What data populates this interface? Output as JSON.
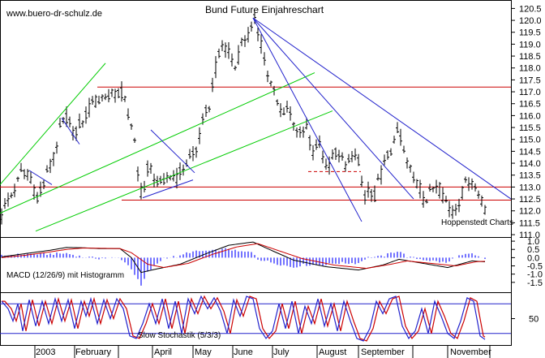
{
  "chart_data": {
    "title": "Bund Future Einjahreschart",
    "watermark": "www.buero-dr-schulz.de",
    "source_label": "Hoppenstedt Charts",
    "price_panel": {
      "type": "candlestick",
      "ylim": [
        110.9,
        120.65
      ],
      "y_ticks": [
        "120.5",
        "120.0",
        "119.5",
        "119.0",
        "118.5",
        "118.0",
        "117.5",
        "117.0",
        "116.5",
        "116.0",
        "115.5",
        "115.0",
        "114.5",
        "114.0",
        "113.5",
        "113.0",
        "112.5",
        "112.0",
        "111.5",
        "111.0"
      ],
      "anchors": [
        {
          "x": 0,
          "y": 111.8
        },
        {
          "x": 8,
          "y": 112.4
        },
        {
          "x": 18,
          "y": 113.0
        },
        {
          "x": 26,
          "y": 113.8
        },
        {
          "x": 36,
          "y": 113.2
        },
        {
          "x": 44,
          "y": 112.6
        },
        {
          "x": 54,
          "y": 113.4
        },
        {
          "x": 64,
          "y": 114.2
        },
        {
          "x": 72,
          "y": 115.4
        },
        {
          "x": 80,
          "y": 115.9
        },
        {
          "x": 90,
          "y": 115.3
        },
        {
          "x": 100,
          "y": 115.8
        },
        {
          "x": 110,
          "y": 116.4
        },
        {
          "x": 122,
          "y": 116.7
        },
        {
          "x": 134,
          "y": 116.9
        },
        {
          "x": 146,
          "y": 117.0
        },
        {
          "x": 152,
          "y": 116.8
        },
        {
          "x": 158,
          "y": 115.8
        },
        {
          "x": 164,
          "y": 114.8
        },
        {
          "x": 170,
          "y": 113.0
        },
        {
          "x": 174,
          "y": 112.6
        },
        {
          "x": 180,
          "y": 113.8
        },
        {
          "x": 190,
          "y": 113.4
        },
        {
          "x": 198,
          "y": 113.0
        },
        {
          "x": 206,
          "y": 113.5
        },
        {
          "x": 214,
          "y": 113.3
        },
        {
          "x": 222,
          "y": 113.7
        },
        {
          "x": 232,
          "y": 114.3
        },
        {
          "x": 240,
          "y": 114.6
        },
        {
          "x": 248,
          "y": 115.7
        },
        {
          "x": 256,
          "y": 116.5
        },
        {
          "x": 264,
          "y": 118.0
        },
        {
          "x": 272,
          "y": 118.9
        },
        {
          "x": 280,
          "y": 118.6
        },
        {
          "x": 288,
          "y": 118.0
        },
        {
          "x": 298,
          "y": 119.2
        },
        {
          "x": 306,
          "y": 119.4
        },
        {
          "x": 312,
          "y": 120.0
        },
        {
          "x": 318,
          "y": 119.4
        },
        {
          "x": 324,
          "y": 118.4
        },
        {
          "x": 330,
          "y": 117.4
        },
        {
          "x": 336,
          "y": 117.0
        },
        {
          "x": 344,
          "y": 116.1
        },
        {
          "x": 352,
          "y": 116.4
        },
        {
          "x": 360,
          "y": 115.8
        },
        {
          "x": 368,
          "y": 115.2
        },
        {
          "x": 376,
          "y": 115.4
        },
        {
          "x": 384,
          "y": 114.4
        },
        {
          "x": 392,
          "y": 114.8
        },
        {
          "x": 400,
          "y": 113.8
        },
        {
          "x": 408,
          "y": 114.3
        },
        {
          "x": 416,
          "y": 114.5
        },
        {
          "x": 424,
          "y": 113.7
        },
        {
          "x": 432,
          "y": 114.4
        },
        {
          "x": 440,
          "y": 114.0
        },
        {
          "x": 446,
          "y": 112.6
        },
        {
          "x": 454,
          "y": 112.8
        },
        {
          "x": 460,
          "y": 112.6
        },
        {
          "x": 466,
          "y": 113.4
        },
        {
          "x": 474,
          "y": 114.1
        },
        {
          "x": 480,
          "y": 114.6
        },
        {
          "x": 486,
          "y": 115.3
        },
        {
          "x": 492,
          "y": 115.1
        },
        {
          "x": 498,
          "y": 114.1
        },
        {
          "x": 504,
          "y": 113.7
        },
        {
          "x": 510,
          "y": 113.2
        },
        {
          "x": 516,
          "y": 112.9
        },
        {
          "x": 522,
          "y": 112.3
        },
        {
          "x": 530,
          "y": 112.9
        },
        {
          "x": 536,
          "y": 113.1
        },
        {
          "x": 542,
          "y": 112.8
        },
        {
          "x": 548,
          "y": 112.4
        },
        {
          "x": 554,
          "y": 111.8
        },
        {
          "x": 560,
          "y": 112.1
        },
        {
          "x": 566,
          "y": 112.6
        },
        {
          "x": 572,
          "y": 113.1
        },
        {
          "x": 578,
          "y": 113.4
        },
        {
          "x": 584,
          "y": 113.0
        },
        {
          "x": 590,
          "y": 112.5
        },
        {
          "x": 596,
          "y": 112.1
        }
      ],
      "horizontal_lines": [
        {
          "y": 117.2,
          "color": "#cc0000",
          "x_from": 120,
          "x_to": 630
        },
        {
          "y": 113.0,
          "color": "#cc0000",
          "x_from": 0,
          "x_to": 630
        },
        {
          "y": 112.45,
          "color": "#cc0000",
          "x_from": 150,
          "x_to": 630
        },
        {
          "y": 113.65,
          "color": "#cc0000",
          "x_from": 380,
          "x_to": 445,
          "dashed": true
        }
      ],
      "trend_lines": [
        {
          "color": "#00cc00",
          "from": [
            0,
            113.1
          ],
          "to": [
            130,
            118.2
          ]
        },
        {
          "color": "#00cc00",
          "from": [
            0,
            111.9
          ],
          "to": [
            388,
            117.8
          ]
        },
        {
          "color": "#00cc00",
          "from": [
            44,
            111.15
          ],
          "to": [
            410,
            116.2
          ]
        },
        {
          "color": "#2222cc",
          "from": [
            312,
            120.1
          ],
          "to": [
            630,
            112.5
          ]
        },
        {
          "color": "#2222cc",
          "from": [
            312,
            120.1
          ],
          "to": [
            510,
            112.5
          ]
        },
        {
          "color": "#2222cc",
          "from": [
            312,
            120.1
          ],
          "to": [
            446,
            111.55
          ]
        },
        {
          "color": "#2222cc",
          "from": [
            36,
            113.7
          ],
          "to": [
            64,
            113.1
          ]
        },
        {
          "color": "#2222cc",
          "from": [
            76,
            115.9
          ],
          "to": [
            98,
            114.8
          ]
        },
        {
          "color": "#2222cc",
          "from": [
            186,
            115.4
          ],
          "to": [
            240,
            113.6
          ]
        },
        {
          "color": "#2222cc",
          "from": [
            176,
            112.55
          ],
          "to": [
            238,
            113.3
          ]
        }
      ]
    },
    "macd_panel": {
      "label": "MACD (12/26/9) mit Histogramm",
      "ylim": [
        -2.1,
        1.25
      ],
      "y_ticks": [
        "1.0",
        "0.5",
        "0.0",
        "-0.5",
        "-1.0",
        "-1.5"
      ],
      "macd_anchors": [
        {
          "x": 0,
          "y": 0.05
        },
        {
          "x": 30,
          "y": 0.25
        },
        {
          "x": 60,
          "y": 0.45
        },
        {
          "x": 80,
          "y": 0.62
        },
        {
          "x": 100,
          "y": 0.6
        },
        {
          "x": 120,
          "y": 0.55
        },
        {
          "x": 146,
          "y": 0.55
        },
        {
          "x": 160,
          "y": 0.0
        },
        {
          "x": 172,
          "y": -0.9
        },
        {
          "x": 190,
          "y": -0.7
        },
        {
          "x": 220,
          "y": -0.4
        },
        {
          "x": 250,
          "y": 0.2
        },
        {
          "x": 280,
          "y": 0.75
        },
        {
          "x": 310,
          "y": 0.95
        },
        {
          "x": 330,
          "y": 0.5
        },
        {
          "x": 360,
          "y": -0.15
        },
        {
          "x": 400,
          "y": -0.55
        },
        {
          "x": 440,
          "y": -0.75
        },
        {
          "x": 470,
          "y": -0.45
        },
        {
          "x": 490,
          "y": -0.1
        },
        {
          "x": 520,
          "y": -0.35
        },
        {
          "x": 550,
          "y": -0.6
        },
        {
          "x": 580,
          "y": -0.2
        },
        {
          "x": 596,
          "y": -0.25
        }
      ],
      "signal_anchors": [
        {
          "x": 0,
          "y": 0.0
        },
        {
          "x": 30,
          "y": 0.15
        },
        {
          "x": 60,
          "y": 0.35
        },
        {
          "x": 80,
          "y": 0.5
        },
        {
          "x": 100,
          "y": 0.58
        },
        {
          "x": 120,
          "y": 0.57
        },
        {
          "x": 146,
          "y": 0.55
        },
        {
          "x": 160,
          "y": 0.3
        },
        {
          "x": 180,
          "y": -0.4
        },
        {
          "x": 200,
          "y": -0.6
        },
        {
          "x": 230,
          "y": -0.35
        },
        {
          "x": 260,
          "y": 0.2
        },
        {
          "x": 290,
          "y": 0.65
        },
        {
          "x": 316,
          "y": 0.85
        },
        {
          "x": 340,
          "y": 0.45
        },
        {
          "x": 370,
          "y": -0.05
        },
        {
          "x": 410,
          "y": -0.45
        },
        {
          "x": 450,
          "y": -0.65
        },
        {
          "x": 480,
          "y": -0.4
        },
        {
          "x": 500,
          "y": -0.2
        },
        {
          "x": 530,
          "y": -0.35
        },
        {
          "x": 560,
          "y": -0.5
        },
        {
          "x": 585,
          "y": -0.25
        },
        {
          "x": 596,
          "y": -0.22
        }
      ]
    },
    "stochastic_panel": {
      "label": "Slow Stochastik (5/3/3)",
      "ylim": [
        0,
        100
      ],
      "y_ticks": [
        "50"
      ],
      "upper_line": 80,
      "lower_line": 20,
      "k_anchors": [
        {
          "x": 0,
          "y": 85
        },
        {
          "x": 8,
          "y": 70
        },
        {
          "x": 14,
          "y": 45
        },
        {
          "x": 20,
          "y": 80
        },
        {
          "x": 26,
          "y": 25
        },
        {
          "x": 34,
          "y": 88
        },
        {
          "x": 42,
          "y": 35
        },
        {
          "x": 50,
          "y": 85
        },
        {
          "x": 58,
          "y": 40
        },
        {
          "x": 66,
          "y": 90
        },
        {
          "x": 74,
          "y": 45
        },
        {
          "x": 82,
          "y": 88
        },
        {
          "x": 90,
          "y": 30
        },
        {
          "x": 98,
          "y": 85
        },
        {
          "x": 104,
          "y": 55
        },
        {
          "x": 110,
          "y": 90
        },
        {
          "x": 118,
          "y": 40
        },
        {
          "x": 126,
          "y": 88
        },
        {
          "x": 134,
          "y": 50
        },
        {
          "x": 142,
          "y": 90
        },
        {
          "x": 150,
          "y": 70
        },
        {
          "x": 158,
          "y": 15
        },
        {
          "x": 166,
          "y": 10
        },
        {
          "x": 174,
          "y": 40
        },
        {
          "x": 182,
          "y": 80
        },
        {
          "x": 190,
          "y": 40
        },
        {
          "x": 198,
          "y": 90
        },
        {
          "x": 206,
          "y": 30
        },
        {
          "x": 214,
          "y": 85
        },
        {
          "x": 222,
          "y": 20
        },
        {
          "x": 230,
          "y": 90
        },
        {
          "x": 238,
          "y": 60
        },
        {
          "x": 246,
          "y": 95
        },
        {
          "x": 254,
          "y": 70
        },
        {
          "x": 262,
          "y": 92
        },
        {
          "x": 270,
          "y": 65
        },
        {
          "x": 278,
          "y": 20
        },
        {
          "x": 286,
          "y": 88
        },
        {
          "x": 294,
          "y": 55
        },
        {
          "x": 302,
          "y": 95
        },
        {
          "x": 310,
          "y": 90
        },
        {
          "x": 318,
          "y": 30
        },
        {
          "x": 326,
          "y": 10
        },
        {
          "x": 334,
          "y": 25
        },
        {
          "x": 342,
          "y": 80
        },
        {
          "x": 350,
          "y": 30
        },
        {
          "x": 358,
          "y": 85
        },
        {
          "x": 366,
          "y": 20
        },
        {
          "x": 374,
          "y": 75
        },
        {
          "x": 382,
          "y": 40
        },
        {
          "x": 390,
          "y": 90
        },
        {
          "x": 398,
          "y": 35
        },
        {
          "x": 406,
          "y": 80
        },
        {
          "x": 414,
          "y": 25
        },
        {
          "x": 422,
          "y": 85
        },
        {
          "x": 430,
          "y": 45
        },
        {
          "x": 438,
          "y": 10
        },
        {
          "x": 446,
          "y": 5
        },
        {
          "x": 454,
          "y": 30
        },
        {
          "x": 462,
          "y": 85
        },
        {
          "x": 470,
          "y": 60
        },
        {
          "x": 478,
          "y": 90
        },
        {
          "x": 486,
          "y": 95
        },
        {
          "x": 494,
          "y": 35
        },
        {
          "x": 502,
          "y": 10
        },
        {
          "x": 510,
          "y": 25
        },
        {
          "x": 518,
          "y": 70
        },
        {
          "x": 526,
          "y": 20
        },
        {
          "x": 534,
          "y": 85
        },
        {
          "x": 542,
          "y": 55
        },
        {
          "x": 550,
          "y": 20
        },
        {
          "x": 558,
          "y": 10
        },
        {
          "x": 566,
          "y": 45
        },
        {
          "x": 574,
          "y": 92
        },
        {
          "x": 582,
          "y": 85
        },
        {
          "x": 590,
          "y": 15
        },
        {
          "x": 596,
          "y": 8
        }
      ]
    },
    "x_axis": {
      "labels": [
        "2003",
        "February",
        "April",
        "May",
        "June",
        "July",
        "August",
        "September",
        "November"
      ],
      "label_pos": [
        44,
        93,
        190,
        240,
        288,
        337,
        393,
        445,
        555
      ],
      "ticks": [
        43,
        92,
        146,
        188,
        238,
        287,
        336,
        391,
        442,
        509,
        552,
        604
      ]
    }
  },
  "colors": {
    "candle": "#000000",
    "macd_hist": "#2a2aff",
    "macd_line": "#000000",
    "signal_line": "#cc0000",
    "stoch_k": "#2222cc",
    "stoch_d": "#cc0000",
    "stoch_levels": "#2222cc",
    "grid": "#bbbbbb"
  }
}
